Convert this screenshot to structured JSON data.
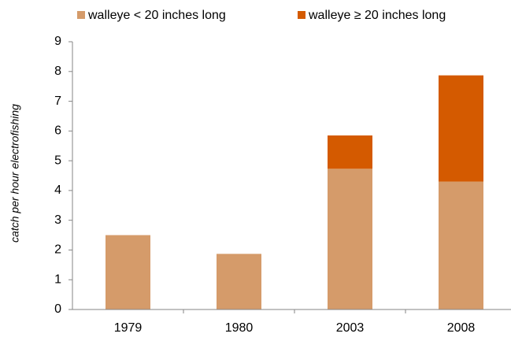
{
  "chart_data": {
    "type": "stacked_bar",
    "y_label": "catch per hour electrofishing",
    "categories": [
      "1979",
      "1980",
      "2003",
      "2008"
    ],
    "series": [
      {
        "name": "walleye < 20 inches long",
        "color": "#d59b6a",
        "values": [
          2.5,
          1.87,
          4.73,
          4.3
        ]
      },
      {
        "name": "walleye ≥ 20 inches long",
        "color": "#d45a00",
        "values": [
          0,
          0,
          1.12,
          3.57
        ]
      }
    ],
    "ylim": [
      0,
      9
    ],
    "yticks": [
      0,
      1,
      2,
      3,
      4,
      5,
      6,
      7,
      8,
      9
    ]
  }
}
